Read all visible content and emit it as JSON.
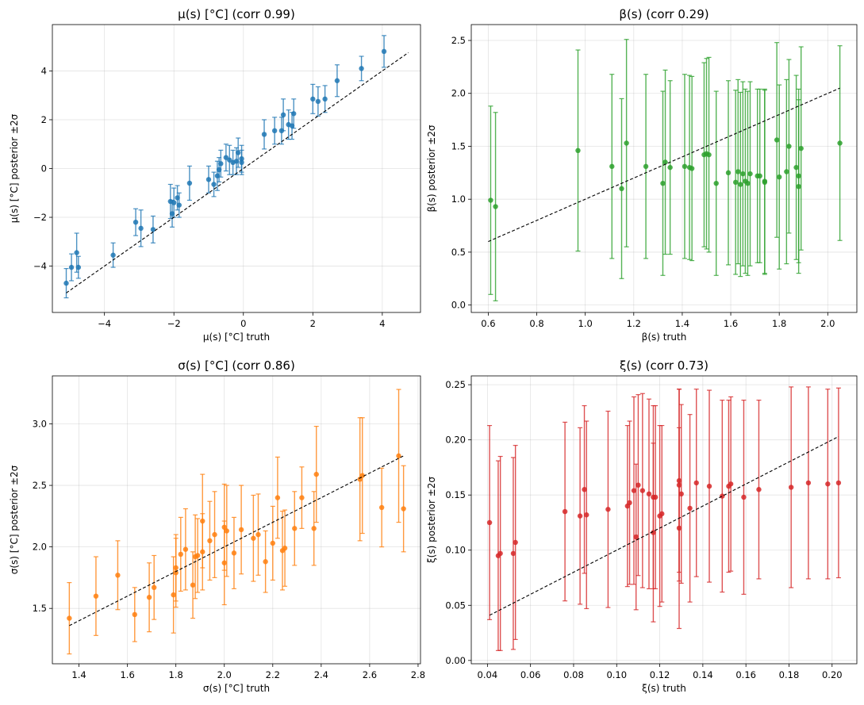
{
  "chart_data": [
    {
      "type": "scatter",
      "title": "μ(s) [°C]  (corr 0.99)",
      "xlabel": "μ(s) [°C] truth",
      "ylabel": "μ(s) [°C] posterior ±2σ",
      "xlim": [
        -5.5,
        5.1
      ],
      "ylim": [
        -5.9,
        5.9
      ],
      "xticks": [
        -4,
        -2,
        0,
        2,
        4
      ],
      "yticks": [
        -4,
        -2,
        0,
        2,
        4
      ],
      "xtick_labels": [
        "−4",
        "−2",
        "0",
        "2",
        "4"
      ],
      "ytick_labels": [
        "−4",
        "−2",
        "0",
        "2",
        "4"
      ],
      "color": "#1f77b4",
      "grid": true,
      "identity_line": [
        [
          -5.1,
          -5.1
        ],
        [
          4.75,
          4.75
        ]
      ],
      "points": [
        [
          -5.1,
          -4.7,
          0.6
        ],
        [
          -4.95,
          -4.05,
          0.55
        ],
        [
          -4.8,
          -3.45,
          0.8
        ],
        [
          -4.75,
          -4.05,
          0.45
        ],
        [
          -3.75,
          -3.55,
          0.5
        ],
        [
          -3.1,
          -2.2,
          0.55
        ],
        [
          -2.95,
          -2.45,
          0.75
        ],
        [
          -2.6,
          -2.5,
          0.55
        ],
        [
          -2.1,
          -1.35,
          0.7
        ],
        [
          -2.05,
          -1.85,
          0.55
        ],
        [
          -2.0,
          -1.4,
          0.6
        ],
        [
          -1.9,
          -1.2,
          0.5
        ],
        [
          -1.85,
          -1.5,
          0.5
        ],
        [
          -1.55,
          -0.6,
          0.7
        ],
        [
          -1.0,
          -0.45,
          0.55
        ],
        [
          -0.85,
          -0.65,
          0.5
        ],
        [
          -0.75,
          -0.3,
          0.6
        ],
        [
          -0.7,
          -0.05,
          0.5
        ],
        [
          -0.65,
          0.2,
          0.55
        ],
        [
          -0.5,
          0.45,
          0.55
        ],
        [
          -0.4,
          0.35,
          0.6
        ],
        [
          -0.3,
          0.25,
          0.5
        ],
        [
          -0.2,
          0.3,
          0.55
        ],
        [
          -0.15,
          0.65,
          0.6
        ],
        [
          -0.05,
          0.4,
          0.55
        ],
        [
          -0.05,
          0.25,
          0.5
        ],
        [
          0.6,
          1.4,
          0.6
        ],
        [
          0.9,
          1.55,
          0.55
        ],
        [
          1.1,
          1.55,
          0.55
        ],
        [
          1.15,
          2.2,
          0.65
        ],
        [
          1.3,
          1.8,
          0.6
        ],
        [
          1.4,
          1.75,
          0.55
        ],
        [
          1.45,
          2.25,
          0.6
        ],
        [
          2.0,
          2.85,
          0.6
        ],
        [
          2.15,
          2.75,
          0.6
        ],
        [
          2.35,
          2.85,
          0.55
        ],
        [
          2.7,
          3.6,
          0.65
        ],
        [
          3.4,
          4.1,
          0.5
        ],
        [
          4.05,
          4.8,
          0.65
        ]
      ]
    },
    {
      "type": "scatter",
      "title": "β(s)  (corr 0.29)",
      "xlabel": "β(s) truth",
      "ylabel": "β(s) posterior ±2σ",
      "xlim": [
        0.53,
        2.12
      ],
      "ylim": [
        -0.07,
        2.65
      ],
      "xticks": [
        0.6,
        0.8,
        1.0,
        1.2,
        1.4,
        1.6,
        1.8,
        2.0
      ],
      "yticks": [
        0.0,
        0.5,
        1.0,
        1.5,
        2.0,
        2.5
      ],
      "xtick_labels": [
        "0.6",
        "0.8",
        "1.0",
        "1.2",
        "1.4",
        "1.6",
        "1.8",
        "2.0"
      ],
      "ytick_labels": [
        "0.0",
        "0.5",
        "1.0",
        "1.5",
        "2.0",
        "2.5"
      ],
      "color": "#2ca02c",
      "grid": true,
      "identity_line": [
        [
          0.6,
          0.6
        ],
        [
          2.05,
          2.05
        ]
      ],
      "points": [
        [
          0.61,
          0.99,
          0.89
        ],
        [
          0.63,
          0.93,
          0.89
        ],
        [
          0.97,
          1.46,
          0.95
        ],
        [
          1.11,
          1.31,
          0.87
        ],
        [
          1.15,
          1.1,
          0.85
        ],
        [
          1.17,
          1.53,
          0.98
        ],
        [
          1.25,
          1.31,
          0.87
        ],
        [
          1.32,
          1.15,
          0.87
        ],
        [
          1.33,
          1.35,
          0.87
        ],
        [
          1.35,
          1.3,
          0.82
        ],
        [
          1.41,
          1.31,
          0.87
        ],
        [
          1.43,
          1.3,
          0.87
        ],
        [
          1.44,
          1.29,
          0.87
        ],
        [
          1.49,
          1.42,
          0.87
        ],
        [
          1.5,
          1.43,
          0.9
        ],
        [
          1.51,
          1.42,
          0.92
        ],
        [
          1.54,
          1.15,
          0.87
        ],
        [
          1.59,
          1.25,
          0.87
        ],
        [
          1.62,
          1.16,
          0.87
        ],
        [
          1.63,
          1.26,
          0.87
        ],
        [
          1.64,
          1.14,
          0.87
        ],
        [
          1.65,
          1.24,
          0.87
        ],
        [
          1.66,
          1.17,
          0.87
        ],
        [
          1.67,
          1.15,
          0.87
        ],
        [
          1.68,
          1.24,
          0.87
        ],
        [
          1.71,
          1.22,
          0.82
        ],
        [
          1.72,
          1.22,
          0.82
        ],
        [
          1.74,
          1.17,
          0.87
        ],
        [
          1.74,
          1.16,
          0.87
        ],
        [
          1.79,
          1.56,
          0.92
        ],
        [
          1.8,
          1.21,
          0.87
        ],
        [
          1.83,
          1.26,
          0.87
        ],
        [
          1.84,
          1.5,
          0.82
        ],
        [
          1.87,
          1.3,
          0.87
        ],
        [
          1.88,
          1.12,
          0.82
        ],
        [
          1.88,
          1.22,
          0.82
        ],
        [
          1.89,
          1.48,
          0.96
        ],
        [
          2.05,
          1.53,
          0.92
        ]
      ]
    },
    {
      "type": "scatter",
      "title": "σ(s) [°C]  (corr 0.86)",
      "xlabel": "σ(s) [°C] truth",
      "ylabel": "σ(s) [°C] posterior ±2σ",
      "xlim": [
        1.29,
        2.81
      ],
      "ylim": [
        1.05,
        3.39
      ],
      "xticks": [
        1.4,
        1.6,
        1.8,
        2.0,
        2.2,
        2.4,
        2.6,
        2.8
      ],
      "yticks": [
        1.5,
        2.0,
        2.5,
        3.0
      ],
      "xtick_labels": [
        "1.4",
        "1.6",
        "1.8",
        "2.0",
        "2.2",
        "2.4",
        "2.6",
        "2.8"
      ],
      "ytick_labels": [
        "1.5",
        "2.0",
        "2.5",
        "3.0"
      ],
      "color": "#ff7f0e",
      "grid": true,
      "identity_line": [
        [
          1.36,
          1.36
        ],
        [
          2.74,
          2.74
        ]
      ],
      "points": [
        [
          1.36,
          1.42,
          0.29
        ],
        [
          1.47,
          1.6,
          0.32
        ],
        [
          1.56,
          1.77,
          0.28
        ],
        [
          1.63,
          1.45,
          0.22
        ],
        [
          1.69,
          1.59,
          0.28
        ],
        [
          1.71,
          1.67,
          0.26
        ],
        [
          1.79,
          1.61,
          0.31
        ],
        [
          1.8,
          1.83,
          0.27
        ],
        [
          1.8,
          1.79,
          0.28
        ],
        [
          1.82,
          1.94,
          0.3
        ],
        [
          1.84,
          1.98,
          0.33
        ],
        [
          1.87,
          1.69,
          0.27
        ],
        [
          1.88,
          1.92,
          0.34
        ],
        [
          1.89,
          1.93,
          0.3
        ],
        [
          1.91,
          1.96,
          0.31
        ],
        [
          1.91,
          2.21,
          0.38
        ],
        [
          1.94,
          2.05,
          0.32
        ],
        [
          1.96,
          2.1,
          0.35
        ],
        [
          2.0,
          2.16,
          0.35
        ],
        [
          2.0,
          1.87,
          0.34
        ],
        [
          2.01,
          2.13,
          0.37
        ],
        [
          2.04,
          1.95,
          0.29
        ],
        [
          2.07,
          2.14,
          0.36
        ],
        [
          2.12,
          2.07,
          0.35
        ],
        [
          2.14,
          2.1,
          0.33
        ],
        [
          2.17,
          1.88,
          0.25
        ],
        [
          2.2,
          2.03,
          0.3
        ],
        [
          2.22,
          2.4,
          0.33
        ],
        [
          2.24,
          1.97,
          0.32
        ],
        [
          2.25,
          1.99,
          0.31
        ],
        [
          2.29,
          2.15,
          0.3
        ],
        [
          2.32,
          2.4,
          0.25
        ],
        [
          2.37,
          2.15,
          0.3
        ],
        [
          2.38,
          2.59,
          0.39
        ],
        [
          2.56,
          2.55,
          0.5
        ],
        [
          2.57,
          2.58,
          0.47
        ],
        [
          2.65,
          2.32,
          0.32
        ],
        [
          2.72,
          2.74,
          0.54
        ],
        [
          2.74,
          2.31,
          0.35
        ]
      ]
    },
    {
      "type": "scatter",
      "title": "ξ(s)  (corr 0.73)",
      "xlabel": "ξ(s) truth",
      "ylabel": "ξ(s) posterior ±2σ",
      "xlim": [
        0.0325,
        0.2115
      ],
      "ylim": [
        -0.003,
        0.258
      ],
      "xticks": [
        0.04,
        0.06,
        0.08,
        0.1,
        0.12,
        0.14,
        0.16,
        0.18,
        0.2
      ],
      "yticks": [
        0.0,
        0.05,
        0.1,
        0.15,
        0.2,
        0.25
      ],
      "xtick_labels": [
        "0.04",
        "0.06",
        "0.08",
        "0.10",
        "0.12",
        "0.14",
        "0.16",
        "0.18",
        "0.20"
      ],
      "ytick_labels": [
        "0.00",
        "0.05",
        "0.10",
        "0.15",
        "0.20",
        "0.25"
      ],
      "color": "#d62728",
      "grid": true,
      "identity_line": [
        [
          0.041,
          0.041
        ],
        [
          0.203,
          0.203
        ]
      ],
      "points": [
        [
          0.041,
          0.125,
          0.088
        ],
        [
          0.045,
          0.095,
          0.086
        ],
        [
          0.046,
          0.097,
          0.088
        ],
        [
          0.052,
          0.097,
          0.087
        ],
        [
          0.053,
          0.107,
          0.088
        ],
        [
          0.076,
          0.135,
          0.081
        ],
        [
          0.083,
          0.131,
          0.08
        ],
        [
          0.085,
          0.155,
          0.076
        ],
        [
          0.086,
          0.132,
          0.085
        ],
        [
          0.096,
          0.137,
          0.089
        ],
        [
          0.105,
          0.14,
          0.073
        ],
        [
          0.106,
          0.143,
          0.074
        ],
        [
          0.108,
          0.154,
          0.085
        ],
        [
          0.109,
          0.112,
          0.066
        ],
        [
          0.11,
          0.159,
          0.082
        ],
        [
          0.112,
          0.154,
          0.088
        ],
        [
          0.115,
          0.151,
          0.086
        ],
        [
          0.117,
          0.116,
          0.081
        ],
        [
          0.117,
          0.148,
          0.083
        ],
        [
          0.118,
          0.148,
          0.083
        ],
        [
          0.12,
          0.131,
          0.082
        ],
        [
          0.121,
          0.133,
          0.08
        ],
        [
          0.129,
          0.12,
          0.091
        ],
        [
          0.129,
          0.159,
          0.087
        ],
        [
          0.13,
          0.151,
          0.081
        ],
        [
          0.129,
          0.163,
          0.083
        ],
        [
          0.134,
          0.138,
          0.085
        ],
        [
          0.137,
          0.161,
          0.085
        ],
        [
          0.143,
          0.158,
          0.087
        ],
        [
          0.149,
          0.149,
          0.087
        ],
        [
          0.152,
          0.158,
          0.078
        ],
        [
          0.153,
          0.16,
          0.079
        ],
        [
          0.159,
          0.148,
          0.088
        ],
        [
          0.166,
          0.155,
          0.081
        ],
        [
          0.181,
          0.157,
          0.091
        ],
        [
          0.189,
          0.161,
          0.087
        ],
        [
          0.198,
          0.16,
          0.086
        ],
        [
          0.203,
          0.161,
          0.086
        ]
      ]
    }
  ]
}
